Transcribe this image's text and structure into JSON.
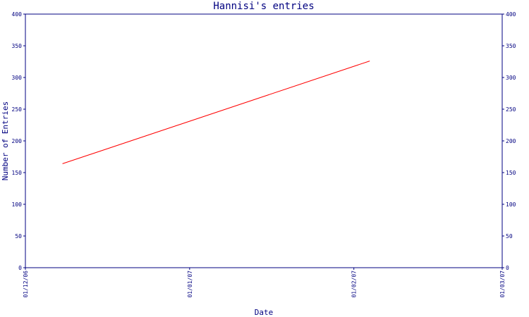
{
  "chart_data": {
    "type": "line",
    "title": "Hannisi's entries",
    "xlabel": "Date",
    "ylabel": "Number of Entries",
    "ylim": [
      0,
      400
    ],
    "xlim": [
      "2006-12-01",
      "2007-03-01"
    ],
    "yticks": [
      0,
      50,
      100,
      150,
      200,
      250,
      300,
      350,
      400
    ],
    "xticks": [
      {
        "label": "01/12/06",
        "date": "2006-12-01"
      },
      {
        "label": "01/01/07",
        "date": "2007-01-01"
      },
      {
        "label": "01/02/07",
        "date": "2007-02-01"
      },
      {
        "label": "01/03/07",
        "date": "2007-03-01"
      }
    ],
    "grid": false,
    "colors": {
      "axis": "#000080",
      "series": "#ff0000"
    },
    "series": [
      {
        "points": [
          {
            "x": "2006-12-08",
            "y": 164
          },
          {
            "x": "2007-02-04",
            "y": 326
          }
        ]
      }
    ]
  }
}
